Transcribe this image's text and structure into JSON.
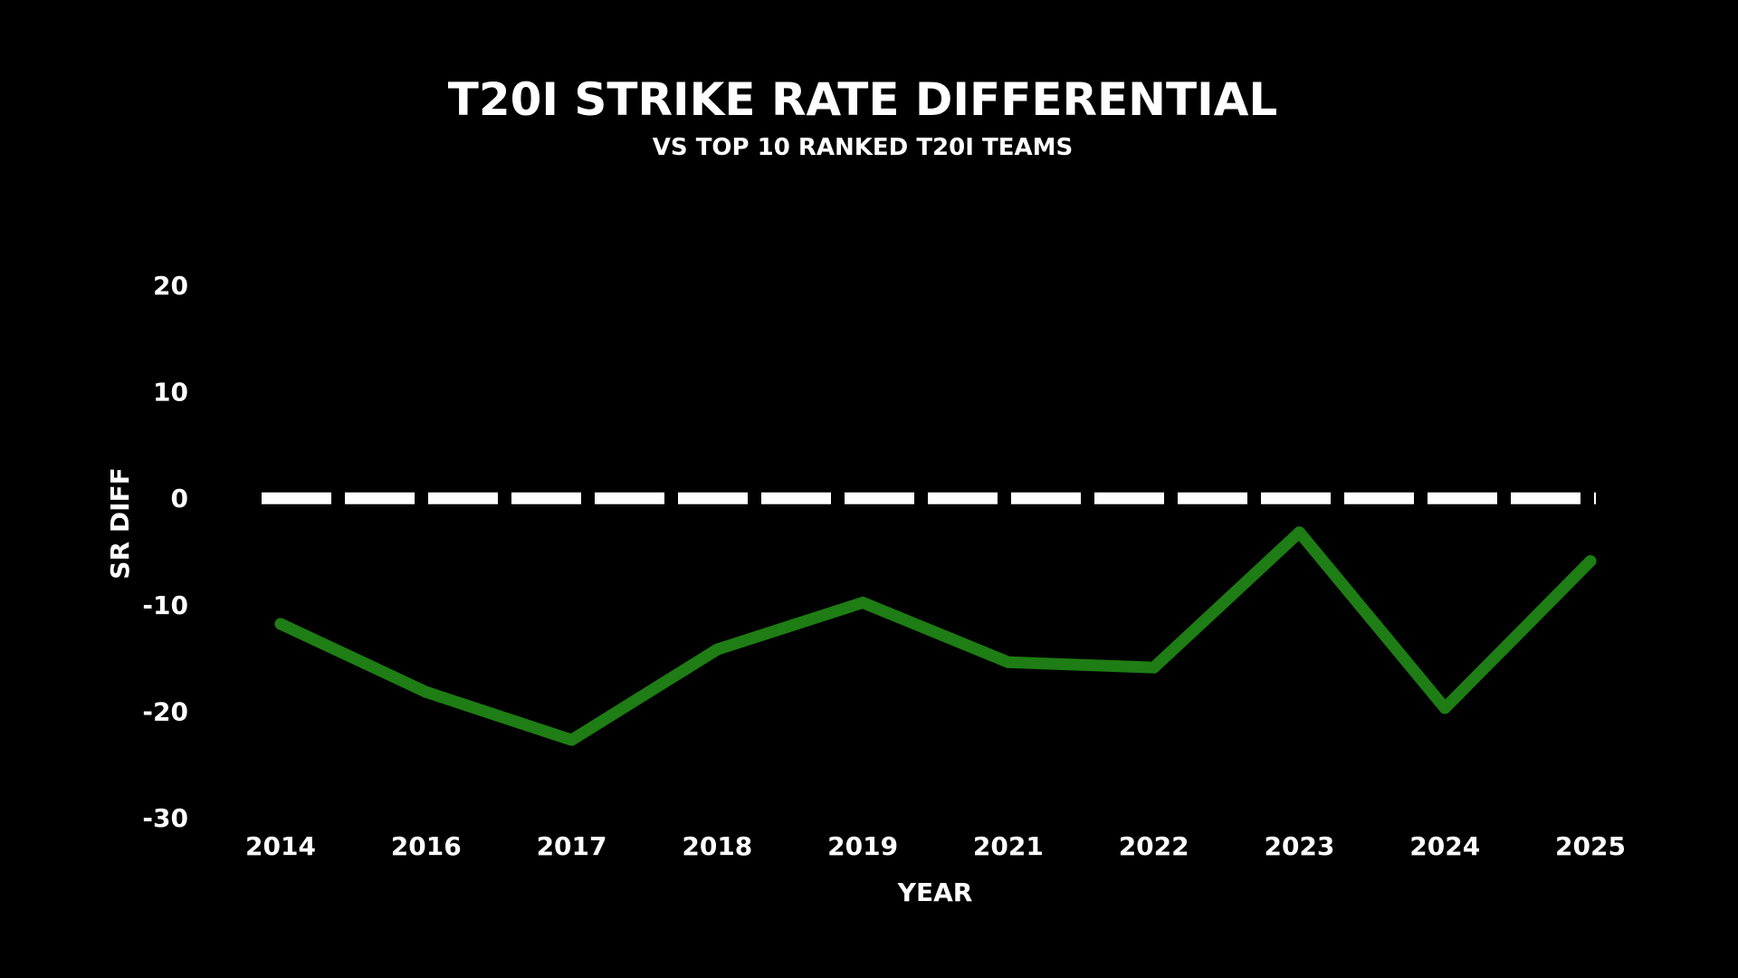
{
  "chart_data": {
    "type": "line",
    "title": "T20I STRIKE RATE DIFFERENTIAL",
    "subtitle": "VS TOP 10 RANKED T20I TEAMS",
    "xlabel": "YEAR",
    "ylabel": "SR DIFF",
    "categories": [
      "2014",
      "2016",
      "2017",
      "2018",
      "2019",
      "2021",
      "2022",
      "2023",
      "2024",
      "2025"
    ],
    "series": [
      {
        "values": [
          -11.8,
          -18.2,
          -22.7,
          -14.2,
          -9.8,
          -15.4,
          -15.9,
          -3.2,
          -19.7,
          -5.9
        ],
        "color": "#1e7d14"
      }
    ],
    "yticks": [
      "20",
      "10",
      "0",
      "-10",
      "-20",
      "-30"
    ],
    "ylim": [
      -30,
      20
    ],
    "reference_line": {
      "value": 0,
      "style": "dashed",
      "color": "#ffffff"
    },
    "grid": false,
    "background": "#000000",
    "text_color": "#ffffff"
  }
}
